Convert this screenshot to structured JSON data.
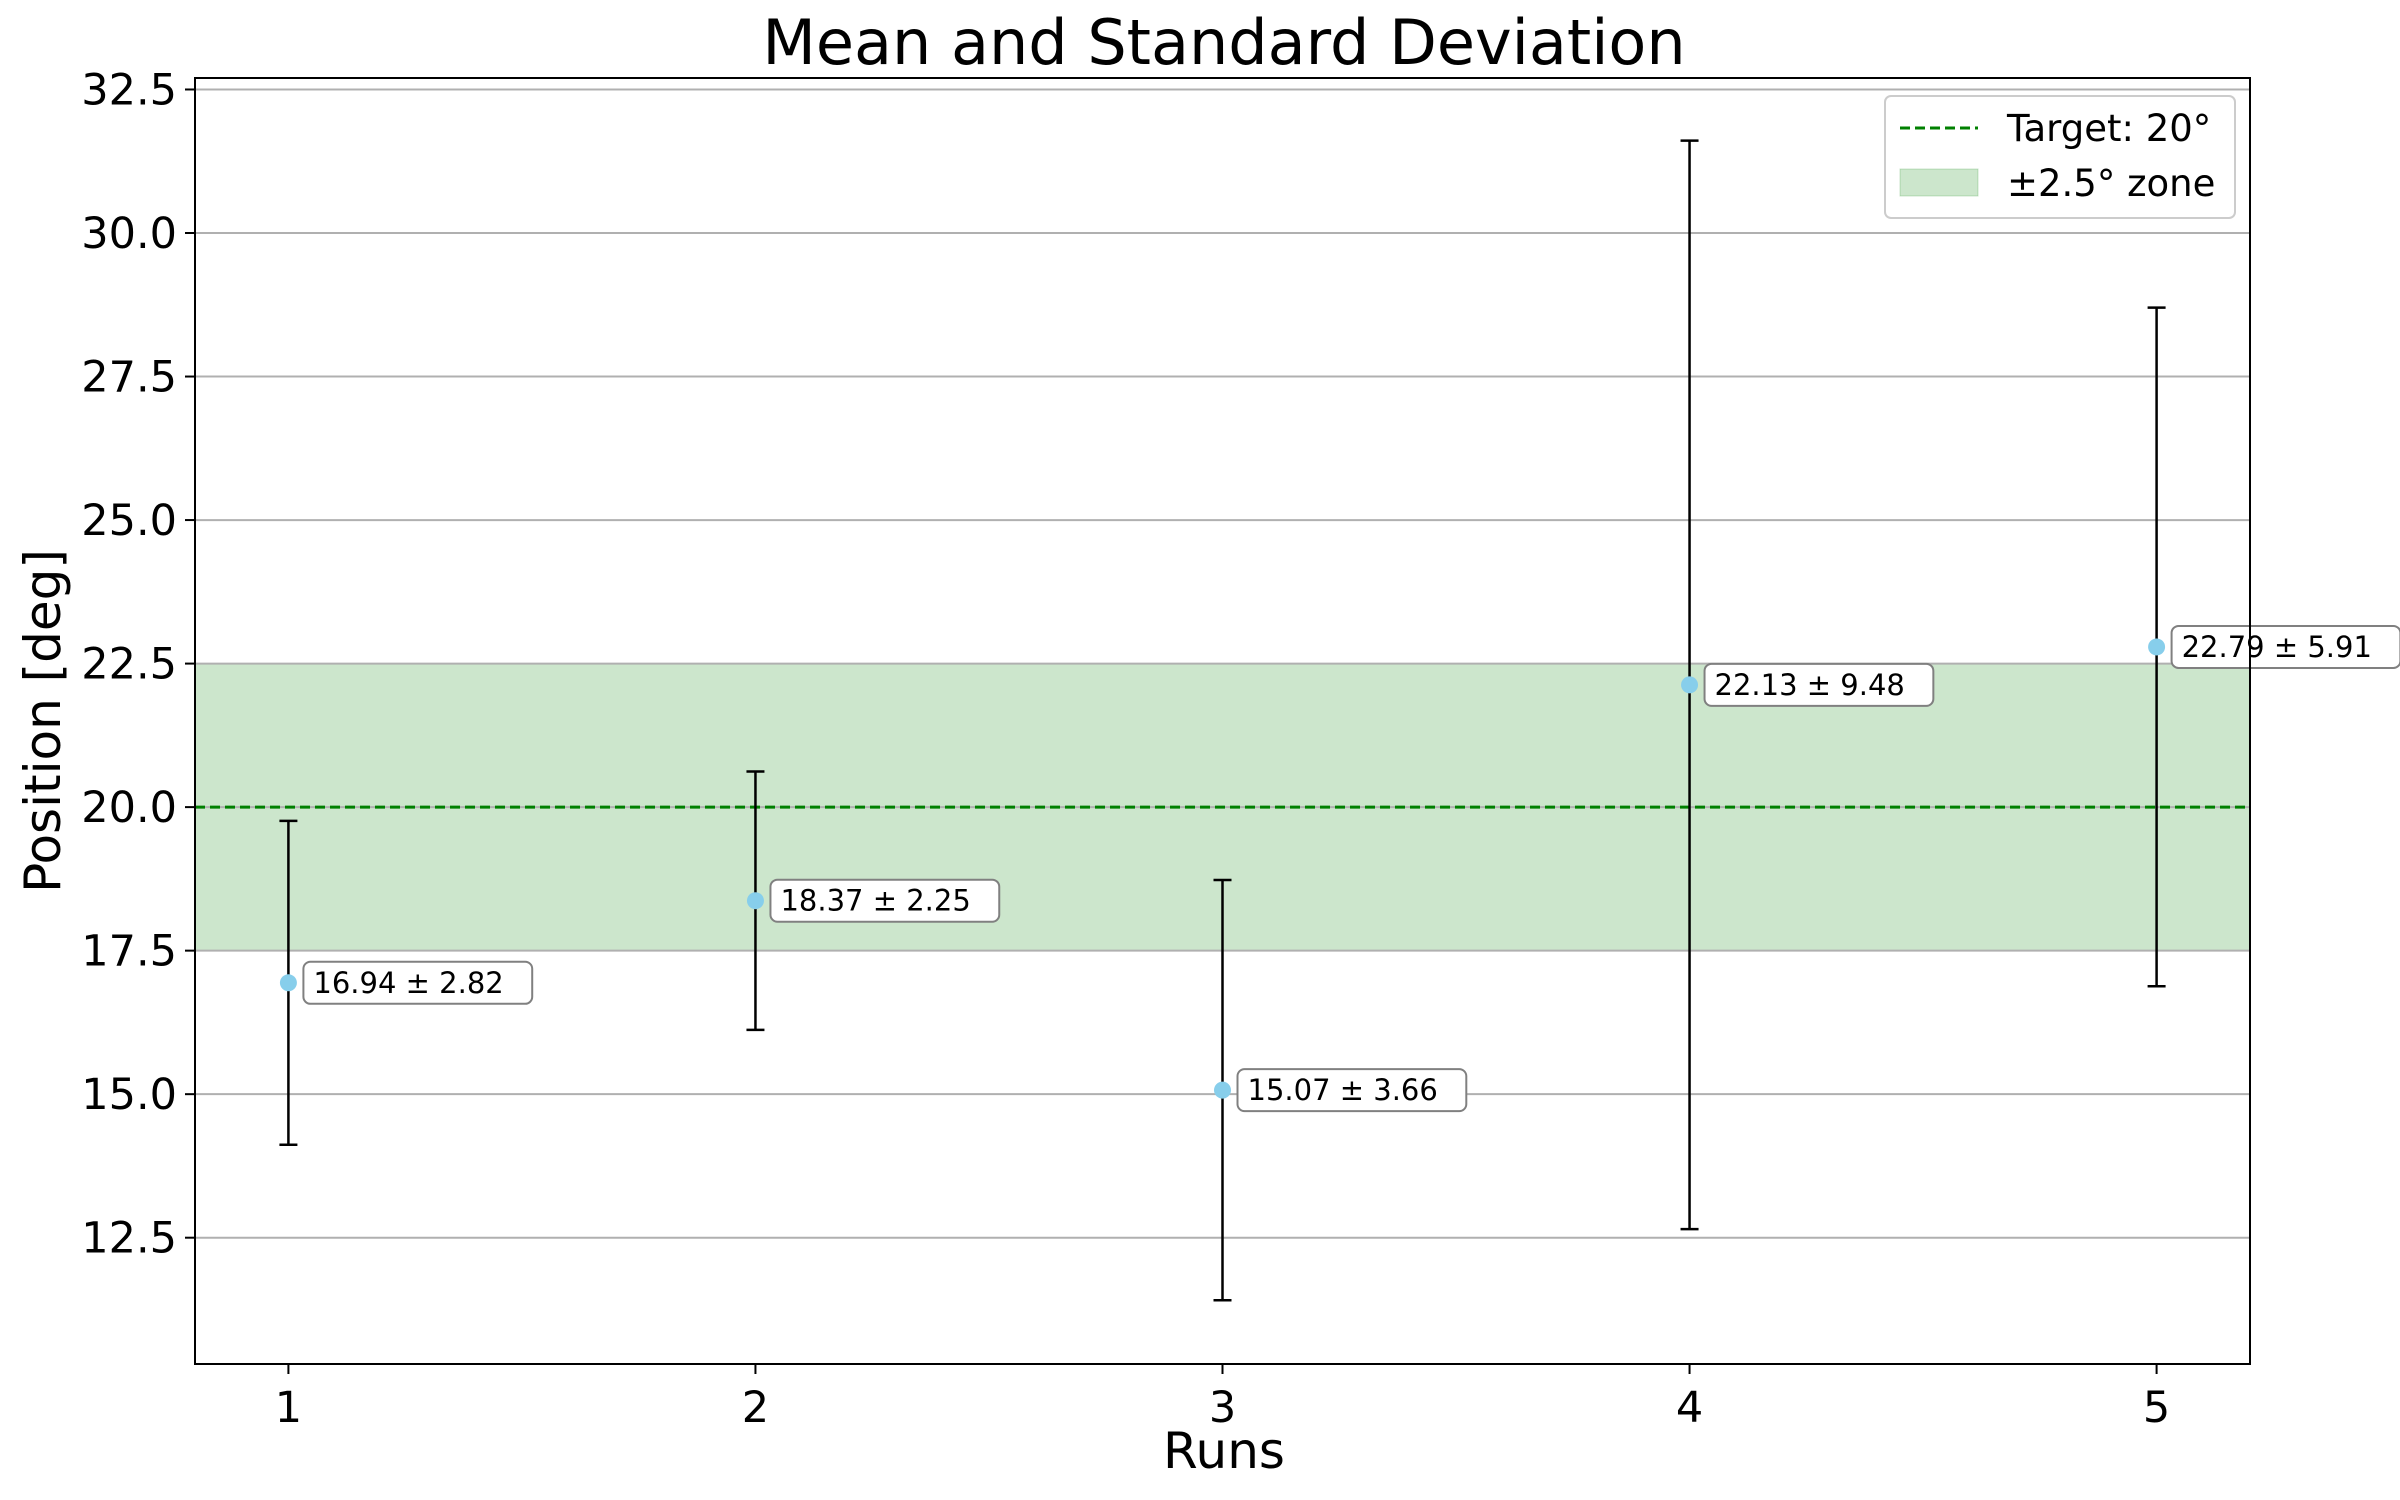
{
  "chart_data": {
    "type": "scatter",
    "title": "Mean and Standard Deviation",
    "xlabel": "Runs",
    "ylabel": "Position [deg]",
    "x": [
      1,
      2,
      3,
      4,
      5
    ],
    "xlim": [
      0.8,
      5.2
    ],
    "ylim": [
      10.3,
      32.7
    ],
    "x_ticks": [
      "1",
      "2",
      "3",
      "4",
      "5"
    ],
    "y_ticks": [
      "12.5",
      "15.0",
      "17.5",
      "20.0",
      "22.5",
      "25.0",
      "27.5",
      "30.0",
      "32.5"
    ],
    "grid": "horizontal",
    "legend_position": "top-right",
    "series": [
      {
        "name": "",
        "type": "errorbar",
        "x": [
          1,
          2,
          3,
          4,
          5
        ],
        "mean": [
          16.94,
          18.37,
          15.07,
          22.13,
          22.79
        ],
        "std": [
          2.82,
          2.25,
          3.66,
          9.48,
          5.91
        ],
        "marker_color": "#87ceeb",
        "error_color": "#000000"
      }
    ],
    "annotations": [
      "16.94 ± 2.82",
      "18.37 ± 2.25",
      "15.07 ± 3.66",
      "22.13 ± 9.48",
      "22.79 ± 5.91"
    ],
    "target": {
      "value": 20,
      "label": "Target: 20°",
      "color": "#008000",
      "style": "dashed"
    },
    "zone": {
      "low": 17.5,
      "high": 22.5,
      "label": "±2.5° zone",
      "color": "#008000"
    }
  }
}
